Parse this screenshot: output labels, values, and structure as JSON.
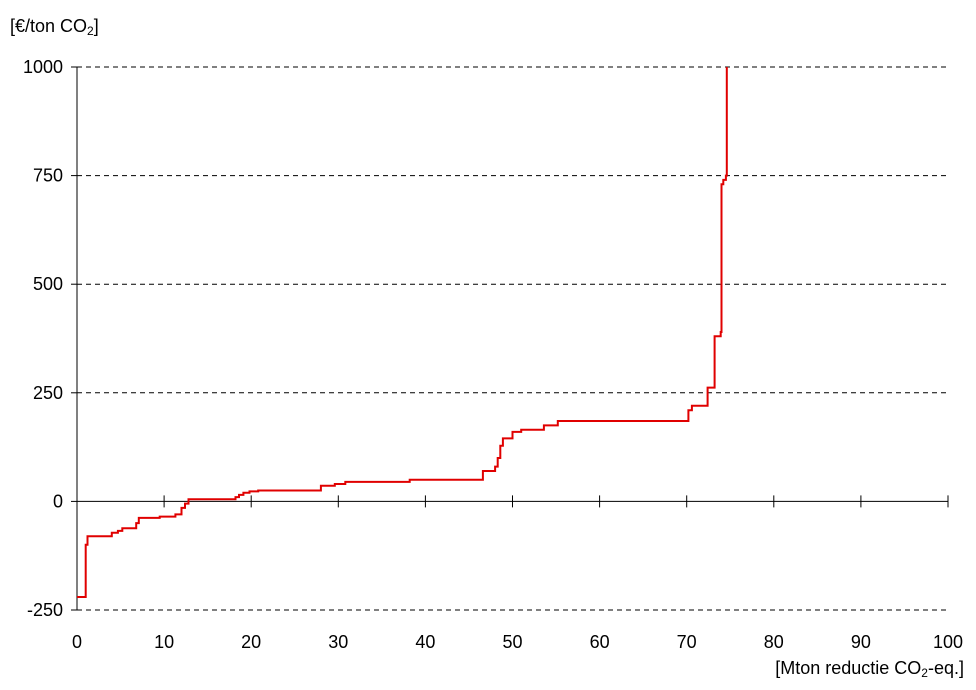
{
  "chart_data": {
    "type": "line",
    "ylabel": {
      "pre": "[€/ton CO",
      "sub": "2",
      "post": "]"
    },
    "xlabel": {
      "pre": "[Mton reductie CO",
      "sub": "2",
      "post": "-eq.]"
    },
    "xlim": [
      0,
      100
    ],
    "ylim": [
      -250,
      1000
    ],
    "xticks": [
      0,
      10,
      20,
      30,
      40,
      50,
      60,
      70,
      80,
      90,
      100
    ],
    "yticks": [
      -250,
      0,
      250,
      500,
      750,
      1000
    ],
    "xtick_labels": [
      "0",
      "10",
      "20",
      "30",
      "40",
      "50",
      "60",
      "70",
      "80",
      "90",
      "100"
    ],
    "ytick_labels": [
      "-250",
      "0",
      "250",
      "500",
      "750",
      "1000"
    ],
    "grid": "horizontal dashed",
    "series": [
      {
        "color": "#e00000",
        "step": true,
        "points": [
          [
            0,
            -220
          ],
          [
            1,
            -220
          ],
          [
            1,
            -100
          ],
          [
            1.2,
            -100
          ],
          [
            1.2,
            -80
          ],
          [
            4,
            -80
          ],
          [
            4,
            -72
          ],
          [
            4.7,
            -72
          ],
          [
            4.7,
            -68
          ],
          [
            5.2,
            -68
          ],
          [
            5.2,
            -62
          ],
          [
            6.8,
            -62
          ],
          [
            6.8,
            -50
          ],
          [
            7.1,
            -50
          ],
          [
            7.1,
            -38
          ],
          [
            9.5,
            -38
          ],
          [
            9.5,
            -35
          ],
          [
            11.3,
            -35
          ],
          [
            11.3,
            -30
          ],
          [
            12,
            -30
          ],
          [
            12,
            -15
          ],
          [
            12.4,
            -15
          ],
          [
            12.4,
            -5
          ],
          [
            12.8,
            -5
          ],
          [
            12.8,
            5
          ],
          [
            18.2,
            5
          ],
          [
            18.2,
            10
          ],
          [
            18.6,
            10
          ],
          [
            18.6,
            15
          ],
          [
            19.1,
            15
          ],
          [
            19.1,
            20
          ],
          [
            19.8,
            20
          ],
          [
            19.8,
            23
          ],
          [
            20.8,
            23
          ],
          [
            20.8,
            25
          ],
          [
            28,
            25
          ],
          [
            28,
            36
          ],
          [
            29.6,
            36
          ],
          [
            29.6,
            40
          ],
          [
            30.8,
            40
          ],
          [
            30.8,
            45
          ],
          [
            38.2,
            45
          ],
          [
            38.2,
            50
          ],
          [
            46.6,
            50
          ],
          [
            46.6,
            70
          ],
          [
            48,
            70
          ],
          [
            48,
            80
          ],
          [
            48.3,
            80
          ],
          [
            48.3,
            100
          ],
          [
            48.6,
            100
          ],
          [
            48.6,
            128
          ],
          [
            48.9,
            128
          ],
          [
            48.9,
            145
          ],
          [
            50,
            145
          ],
          [
            50,
            160
          ],
          [
            51,
            160
          ],
          [
            51,
            165
          ],
          [
            53.6,
            165
          ],
          [
            53.6,
            175
          ],
          [
            55.2,
            175
          ],
          [
            55.2,
            185
          ],
          [
            70.2,
            185
          ],
          [
            70.2,
            210
          ],
          [
            70.6,
            210
          ],
          [
            70.6,
            220
          ],
          [
            72.4,
            220
          ],
          [
            72.4,
            262
          ],
          [
            73.2,
            262
          ],
          [
            73.2,
            380
          ],
          [
            73.9,
            380
          ],
          [
            73.9,
            390
          ],
          [
            74,
            390
          ],
          [
            74,
            730
          ],
          [
            74.2,
            730
          ],
          [
            74.2,
            740
          ],
          [
            74.5,
            740
          ],
          [
            74.5,
            750
          ],
          [
            74.6,
            750
          ],
          [
            74.6,
            1000
          ]
        ]
      }
    ]
  }
}
